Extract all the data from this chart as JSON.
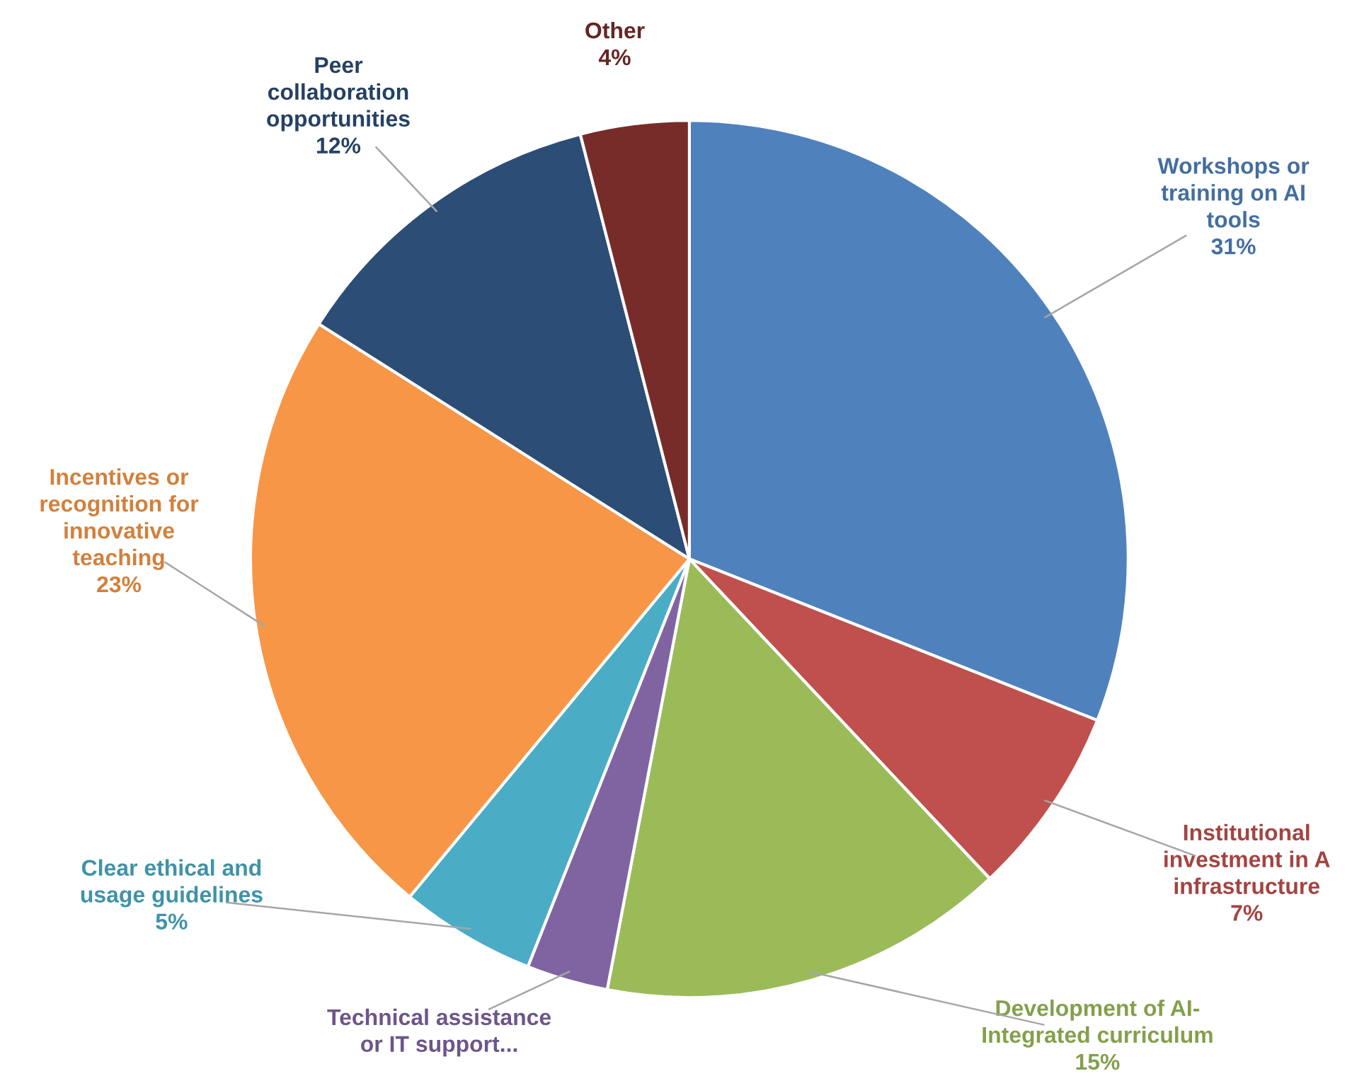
{
  "chart_data": {
    "type": "pie",
    "categories": [
      "Workshops or\ntraining on AI\ntools",
      "Institutional\ninvestment in A\ninfrastructure",
      "Development of AI-\nIntegrated curriculum",
      "Technical assistance\nor IT support...",
      "Clear ethical and\nusage guidelines",
      "Incentives or\nrecognition for\ninnovative\nteaching",
      "Peer\ncollaboration\nopportunities",
      "Other"
    ],
    "values": [
      31,
      7,
      15,
      3,
      5,
      23,
      12,
      4
    ],
    "value_labels": [
      "31%",
      "7%",
      "15%",
      null,
      "5%",
      "23%",
      "12%",
      "4%"
    ],
    "colors": [
      "#4f81bd",
      "#c0504d",
      "#9bbb59",
      "#8064a2",
      "#4bacc6",
      "#f79646",
      "#2c4d75",
      "#772c2a"
    ],
    "legend": false
  }
}
